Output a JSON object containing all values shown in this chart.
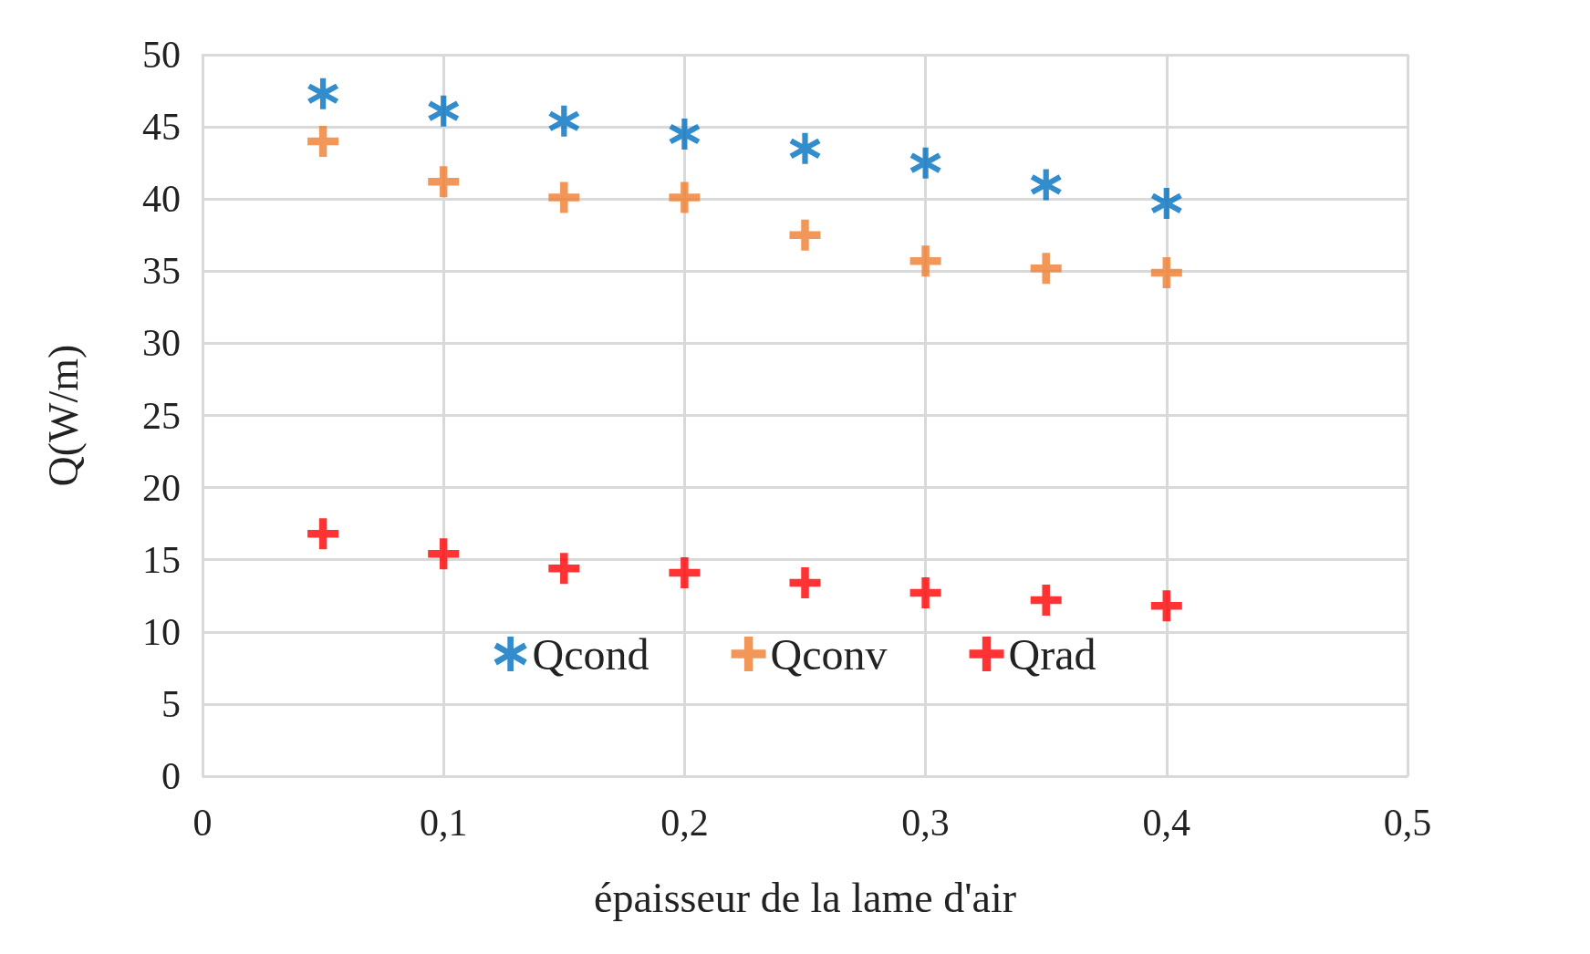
{
  "chart_data": {
    "type": "scatter",
    "xlabel": "épaisseur de la lame d'air",
    "ylabel": "Q(W/m)",
    "x": [
      0.05,
      0.1,
      0.15,
      0.2,
      0.25,
      0.3,
      0.35,
      0.4
    ],
    "series": [
      {
        "name": "Qcond",
        "color": "#0070c0",
        "marker": "star",
        "values": [
          47.3,
          46.1,
          45.4,
          44.5,
          43.5,
          42.5,
          41.0,
          39.7
        ]
      },
      {
        "name": "Qconv",
        "color": "#ed7d31",
        "marker": "cross",
        "values": [
          44.0,
          41.2,
          40.1,
          40.1,
          37.5,
          35.7,
          35.2,
          34.9
        ]
      },
      {
        "name": "Qrad",
        "color": "#ff0000",
        "marker": "cross",
        "values": [
          16.8,
          15.4,
          14.4,
          14.1,
          13.4,
          12.7,
          12.2,
          11.8
        ]
      }
    ],
    "xlim": [
      0,
      0.5
    ],
    "xticks": [
      0,
      {
        "value": 0.1,
        "label": "0,1"
      },
      {
        "value": 0.2,
        "label": "0,2"
      },
      {
        "value": 0.3,
        "label": "0,3"
      },
      {
        "value": 0.4,
        "label": "0,4"
      },
      {
        "value": 0.5,
        "label": "0,5"
      }
    ],
    "ylim": [
      0,
      50
    ],
    "yticks": [
      0,
      5,
      10,
      15,
      20,
      25,
      30,
      35,
      40,
      45,
      50
    ],
    "grid": true,
    "legend": "bottom"
  }
}
